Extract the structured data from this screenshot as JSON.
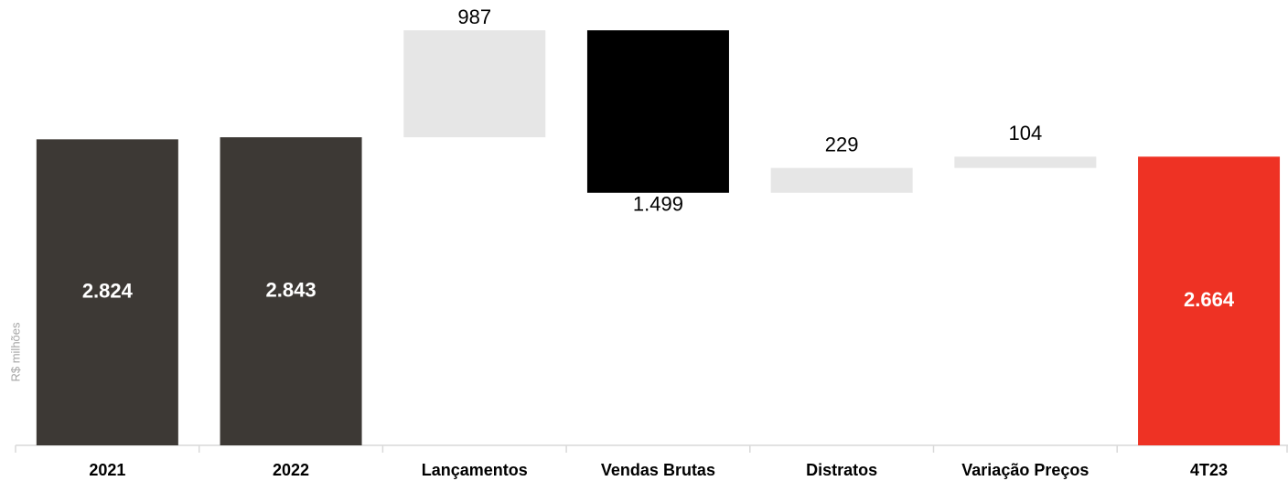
{
  "chart_data": {
    "type": "waterfall",
    "y_label": "R$ milhões",
    "categories": [
      "2021",
      "2022",
      "Lançamentos",
      "Vendas Brutas",
      "Distratos",
      "Variação Preços",
      "4T23"
    ],
    "values": [
      2824,
      2843,
      987,
      -1499,
      229,
      104,
      2664
    ],
    "value_labels": [
      "2.824",
      "2.843",
      "987",
      "1.499",
      "229",
      "104",
      "2.664"
    ],
    "measures": [
      "total",
      "total",
      "relative",
      "relative",
      "relative",
      "relative",
      "total"
    ],
    "colors": [
      "#3d3935",
      "#3d3935",
      "#e6e6e6",
      "#000000",
      "#e6e6e6",
      "#e6e6e6",
      "#ee3224"
    ],
    "ylim": [
      0,
      4000
    ]
  }
}
